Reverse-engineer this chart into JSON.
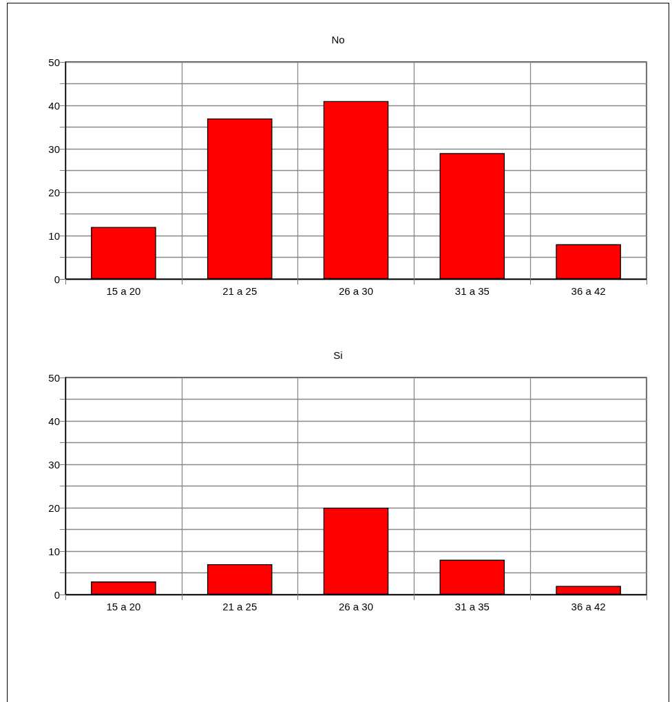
{
  "chart_data": [
    {
      "type": "bar",
      "title": "No",
      "categories": [
        "15 a 20",
        "21 a 25",
        "26 a 30",
        "31 a 35",
        "36 a 42"
      ],
      "values": [
        12,
        37,
        41,
        29,
        8
      ],
      "color": "#ff0000",
      "ylim": [
        0,
        50
      ],
      "yticks": [
        0,
        {
          "value": 5,
          "label": null
        },
        10,
        {
          "value": 15,
          "label": null
        },
        20,
        {
          "value": 25,
          "label": null
        },
        30,
        {
          "value": 35,
          "label": null
        },
        40,
        {
          "value": 45,
          "label": null
        },
        50
      ],
      "grid": true
    },
    {
      "type": "bar",
      "title": "Si",
      "categories": [
        "15 a 20",
        "21 a 25",
        "26 a 30",
        "31 a 35",
        "36 a 42"
      ],
      "values": [
        3,
        7,
        20,
        8,
        2
      ],
      "color": "#ff0000",
      "ylim": [
        0,
        50
      ],
      "yticks": [
        0,
        {
          "value": 5,
          "label": null
        },
        10,
        {
          "value": 15,
          "label": null
        },
        20,
        {
          "value": 25,
          "label": null
        },
        30,
        {
          "value": 35,
          "label": null
        },
        40,
        {
          "value": 45,
          "label": null
        },
        50
      ],
      "grid": true
    }
  ]
}
